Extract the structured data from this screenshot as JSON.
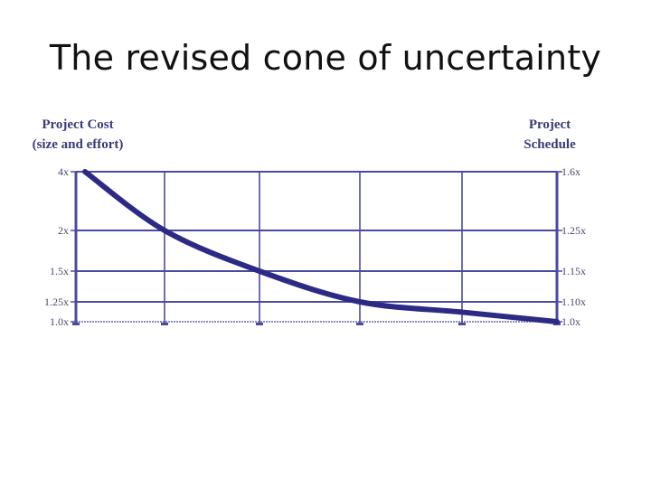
{
  "slide": {
    "title": "The revised cone of uncertainty"
  },
  "colors": {
    "curve": "#2d2a86",
    "grid": "#4b4aa0",
    "text": "#3a3a78"
  },
  "chart_data": {
    "type": "line",
    "left_axis_title": [
      "Project Cost",
      "(size and effort)"
    ],
    "right_axis_title": [
      "Project",
      "Schedule"
    ],
    "left_ticks": [
      {
        "label": "4x",
        "value": 4
      },
      {
        "label": "2x",
        "value": 2
      },
      {
        "label": "1.5x",
        "value": 1.5
      },
      {
        "label": "1.25x",
        "value": 1.25
      },
      {
        "label": "1.0x",
        "value": 1.0
      }
    ],
    "right_ticks": [
      {
        "label": "1.6x",
        "value": 1.6
      },
      {
        "label": "1.25x",
        "value": 1.25
      },
      {
        "label": "1.15x",
        "value": 1.15
      },
      {
        "label": "1.10x",
        "value": 1.1
      },
      {
        "label": "1.0x",
        "value": 1.0
      }
    ],
    "milestones": 6,
    "series": [
      {
        "values": [
          4,
          2,
          1.5,
          1.25,
          1.12,
          1.0
        ]
      }
    ],
    "grid": true
  }
}
